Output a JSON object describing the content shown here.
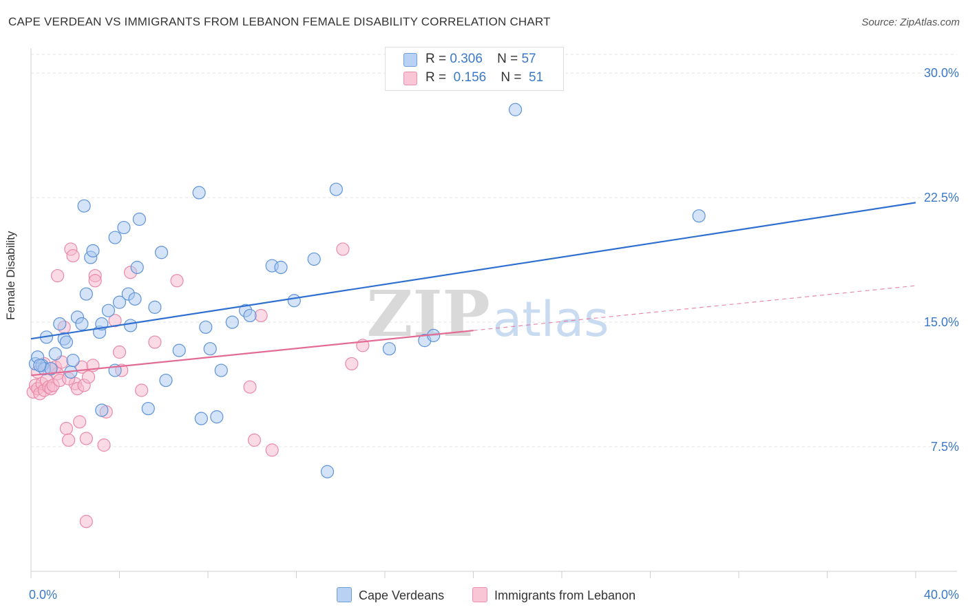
{
  "header": {
    "title": "CAPE VERDEAN VS IMMIGRANTS FROM LEBANON FEMALE DISABILITY CORRELATION CHART",
    "source": "Source: ZipAtlas.com"
  },
  "legend": {
    "blue": {
      "r_label": "R =",
      "r_value": "0.306",
      "n_label": "N =",
      "n_value": "57"
    },
    "pink": {
      "r_label": "R =",
      "r_value": "0.156",
      "n_label": "N =",
      "n_value": "51"
    }
  },
  "watermark": {
    "zip": "ZIP",
    "atlas": "atlas"
  },
  "colors": {
    "blue_fill": "#a9c8f0",
    "blue_stroke": "#5d93d8",
    "blue_line": "#2f6fd0",
    "pink_fill": "#f6b8cb",
    "pink_stroke": "#ea89a8",
    "pink_line": "#e26b93",
    "axis_text": "#3a78c9"
  },
  "chart_data": {
    "type": "scatter",
    "title": "CAPE VERDEAN VS IMMIGRANTS FROM LEBANON FEMALE DISABILITY CORRELATION CHART",
    "xlabel": "",
    "ylabel": "Female Disability",
    "xlim": [
      0,
      40
    ],
    "ylim": [
      0,
      31.5
    ],
    "x_tick_labels": [
      "0.0%",
      "40.0%"
    ],
    "y_ticks": [
      7.5,
      15.0,
      22.5,
      30.0
    ],
    "y_tick_labels": [
      "7.5%",
      "15.0%",
      "22.5%",
      "30.0%"
    ],
    "grid": true,
    "series": [
      {
        "name": "Cape Verdeans",
        "color": "blue",
        "points": [
          [
            0.2,
            12.5
          ],
          [
            0.3,
            12.9
          ],
          [
            0.5,
            12.4
          ],
          [
            0.6,
            12.2
          ],
          [
            0.9,
            12.2
          ],
          [
            0.7,
            14.1
          ],
          [
            1.1,
            13.1
          ],
          [
            1.3,
            14.9
          ],
          [
            1.5,
            14.0
          ],
          [
            1.6,
            13.8
          ],
          [
            1.8,
            12.0
          ],
          [
            1.9,
            12.7
          ],
          [
            2.1,
            15.3
          ],
          [
            2.3,
            14.9
          ],
          [
            2.4,
            22.0
          ],
          [
            2.5,
            16.7
          ],
          [
            2.7,
            18.9
          ],
          [
            2.8,
            19.3
          ],
          [
            3.1,
            14.4
          ],
          [
            3.2,
            14.9
          ],
          [
            3.2,
            9.7
          ],
          [
            3.5,
            15.7
          ],
          [
            3.8,
            12.1
          ],
          [
            3.8,
            20.1
          ],
          [
            4.0,
            16.2
          ],
          [
            4.2,
            20.7
          ],
          [
            4.4,
            16.7
          ],
          [
            4.5,
            14.8
          ],
          [
            4.7,
            16.4
          ],
          [
            4.8,
            18.3
          ],
          [
            4.9,
            21.2
          ],
          [
            5.3,
            9.8
          ],
          [
            5.6,
            15.9
          ],
          [
            5.9,
            19.2
          ],
          [
            6.1,
            11.5
          ],
          [
            6.7,
            13.3
          ],
          [
            7.6,
            22.8
          ],
          [
            7.7,
            9.2
          ],
          [
            7.9,
            14.7
          ],
          [
            8.1,
            13.4
          ],
          [
            8.4,
            9.3
          ],
          [
            8.6,
            12.1
          ],
          [
            9.1,
            15.0
          ],
          [
            9.7,
            15.7
          ],
          [
            9.9,
            15.4
          ],
          [
            10.9,
            18.4
          ],
          [
            11.3,
            18.3
          ],
          [
            11.9,
            16.3
          ],
          [
            12.8,
            18.8
          ],
          [
            13.4,
            6.0
          ],
          [
            13.8,
            23.0
          ],
          [
            16.2,
            13.4
          ],
          [
            17.8,
            13.9
          ],
          [
            18.2,
            14.2
          ],
          [
            21.9,
            27.8
          ],
          [
            30.2,
            21.4
          ],
          [
            0.4,
            12.4
          ]
        ],
        "trend": {
          "x": [
            0,
            40
          ],
          "y": [
            14.0,
            22.2
          ]
        }
      },
      {
        "name": "Immigrants from Lebanon",
        "color": "pink",
        "points": [
          [
            0.1,
            10.8
          ],
          [
            0.2,
            11.2
          ],
          [
            0.3,
            11.0
          ],
          [
            0.4,
            10.7
          ],
          [
            0.5,
            11.3
          ],
          [
            0.6,
            10.9
          ],
          [
            0.7,
            11.5
          ],
          [
            0.8,
            11.1
          ],
          [
            0.9,
            11.0
          ],
          [
            1.0,
            11.2
          ],
          [
            1.1,
            12.3
          ],
          [
            1.2,
            11.9
          ],
          [
            1.3,
            11.5
          ],
          [
            1.4,
            12.6
          ],
          [
            1.5,
            14.7
          ],
          [
            1.6,
            8.6
          ],
          [
            1.7,
            7.9
          ],
          [
            1.8,
            19.4
          ],
          [
            1.9,
            19.0
          ],
          [
            2.0,
            11.3
          ],
          [
            2.1,
            11.0
          ],
          [
            2.2,
            9.0
          ],
          [
            2.3,
            12.3
          ],
          [
            2.4,
            11.2
          ],
          [
            2.5,
            8.0
          ],
          [
            2.6,
            11.7
          ],
          [
            2.5,
            3.0
          ],
          [
            2.9,
            17.8
          ],
          [
            2.9,
            17.5
          ],
          [
            3.3,
            7.6
          ],
          [
            3.4,
            9.6
          ],
          [
            3.8,
            15.1
          ],
          [
            4.0,
            13.2
          ],
          [
            4.1,
            12.1
          ],
          [
            4.5,
            18.0
          ],
          [
            5.0,
            10.9
          ],
          [
            5.6,
            13.8
          ],
          [
            6.6,
            17.5
          ],
          [
            9.9,
            11.1
          ],
          [
            10.1,
            7.9
          ],
          [
            10.4,
            15.4
          ],
          [
            10.9,
            7.3
          ],
          [
            14.1,
            19.4
          ],
          [
            14.5,
            12.5
          ],
          [
            15.0,
            13.6
          ],
          [
            1.2,
            17.8
          ],
          [
            0.9,
            12.2
          ],
          [
            1.7,
            11.6
          ],
          [
            0.6,
            12.5
          ],
          [
            0.3,
            12.0
          ],
          [
            2.8,
            12.4
          ]
        ],
        "trend": {
          "x": [
            0,
            20
          ],
          "y": [
            11.8,
            14.5
          ]
        },
        "trend_dashed": {
          "x": [
            20,
            40
          ],
          "y": [
            14.5,
            17.2
          ]
        }
      }
    ]
  },
  "bottom_legend": {
    "blue_label": "Cape Verdeans",
    "pink_label": "Immigrants from Lebanon"
  }
}
